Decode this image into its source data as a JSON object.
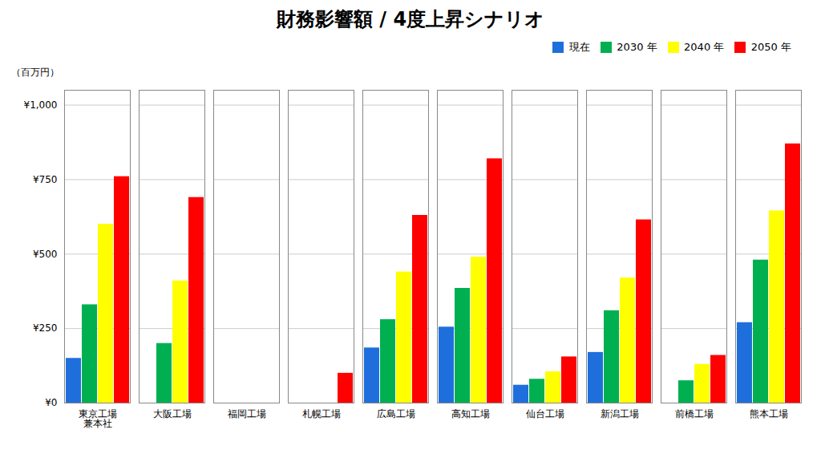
{
  "chart_data": {
    "type": "bar",
    "title": "財務影響額 / 4度上昇シナリオ",
    "ylabel": "（百万円）",
    "categories": [
      "東京工場\n兼本社",
      "大阪工場",
      "福岡工場",
      "札幌工場",
      "広島工場",
      "高知工場",
      "仙台工場",
      "新潟工場",
      "前橋工場",
      "熊本工場"
    ],
    "series": [
      {
        "name": "現在",
        "color": "#1e6fdc",
        "values": [
          150,
          0,
          0,
          0,
          185,
          255,
          60,
          170,
          0,
          270
        ]
      },
      {
        "name": "2030 年",
        "color": "#00b050",
        "values": [
          330,
          200,
          0,
          0,
          280,
          385,
          80,
          310,
          75,
          480
        ]
      },
      {
        "name": "2040 年",
        "color": "#ffff00",
        "values": [
          600,
          410,
          0,
          0,
          440,
          490,
          105,
          420,
          130,
          645
        ]
      },
      {
        "name": "2050 年",
        "color": "#ff0000",
        "values": [
          760,
          690,
          0,
          100,
          630,
          820,
          155,
          615,
          160,
          870
        ]
      }
    ],
    "ylim": [
      0,
      1050
    ],
    "yticks": [
      {
        "value": 0,
        "label": "¥0"
      },
      {
        "value": 250,
        "label": "¥250"
      },
      {
        "value": 500,
        "label": "¥500"
      },
      {
        "value": 750,
        "label": "¥750"
      },
      {
        "value": 1000,
        "label": "¥1,000"
      }
    ],
    "grid": true,
    "legend": "upper right"
  }
}
